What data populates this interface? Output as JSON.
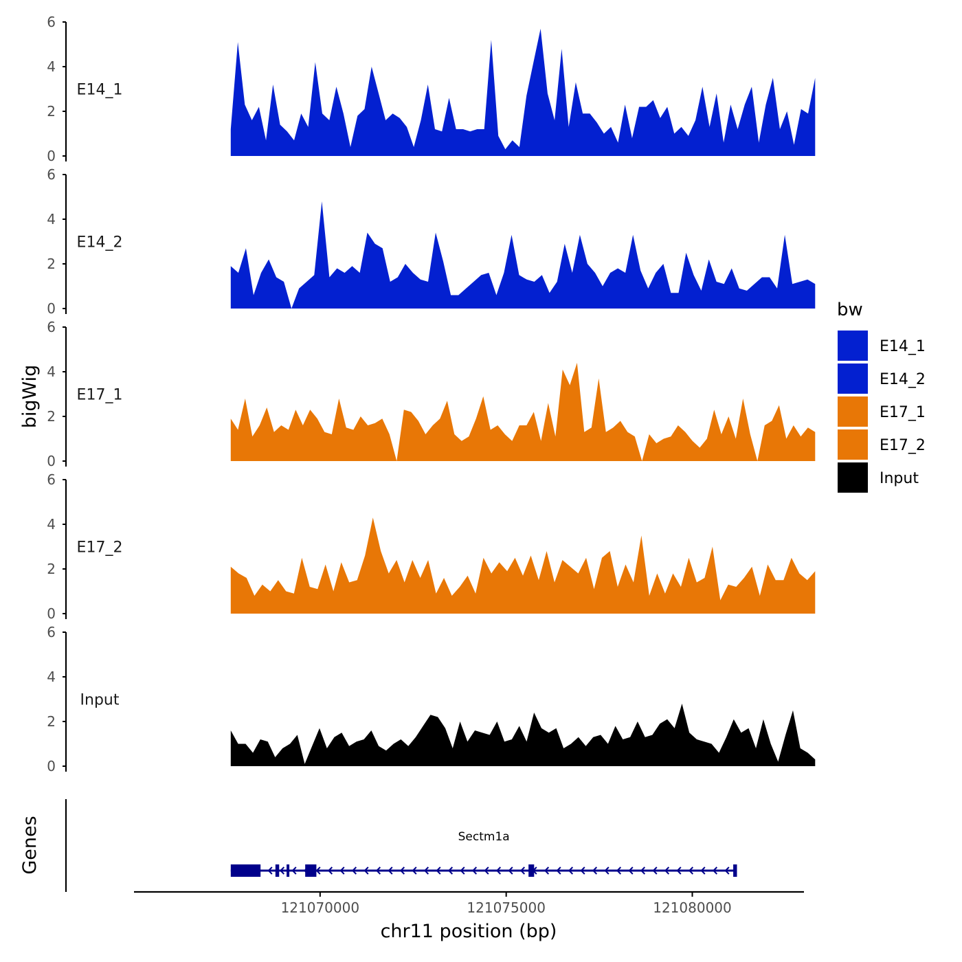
{
  "chart_data": {
    "type": "area",
    "title": "",
    "ylabel": "bigWig",
    "genes_label": "Genes",
    "xlabel": "chr11 position (bp)",
    "xlim": [
      121065000,
      121083000
    ],
    "x_ticks": [
      121070000,
      121075000,
      121080000
    ],
    "x_tick_labels": [
      "121070000",
      "121075000",
      "121080000"
    ],
    "ylim": [
      0,
      6
    ],
    "y_ticks": [
      0,
      2,
      4,
      6
    ],
    "y_tick_labels": [
      "0",
      "2",
      "4",
      "6"
    ],
    "legend": {
      "title": "bw",
      "position": "right",
      "entries": [
        {
          "label": "E14_1",
          "color": "#0320D0"
        },
        {
          "label": "E14_2",
          "color": "#0320D0"
        },
        {
          "label": "E17_1",
          "color": "#E87706"
        },
        {
          "label": "E17_2",
          "color": "#E87706"
        },
        {
          "label": "Input",
          "color": "#000000"
        }
      ]
    },
    "series": [
      {
        "name": "E14_1",
        "color": "#0320D0",
        "x_start": 121067600,
        "x_end": 121083300,
        "values": [
          1.2,
          5.1,
          2.3,
          1.6,
          2.2,
          0.7,
          3.2,
          1.4,
          1.1,
          0.7,
          1.9,
          1.3,
          4.2,
          1.9,
          1.6,
          3.1,
          1.9,
          0.4,
          1.8,
          2.1,
          4.0,
          2.8,
          1.6,
          1.9,
          1.7,
          1.3,
          0.4,
          1.6,
          3.2,
          1.2,
          1.1,
          2.6,
          1.2,
          1.2,
          1.1,
          1.2,
          1.2,
          5.2,
          0.9,
          0.3,
          0.7,
          0.4,
          2.7,
          4.2,
          5.7,
          2.8,
          1.6,
          4.8,
          1.3,
          3.3,
          1.9,
          1.9,
          1.5,
          1.0,
          1.3,
          0.6,
          2.3,
          0.8,
          2.2,
          2.2,
          2.5,
          1.7,
          2.2,
          1.0,
          1.3,
          0.9,
          1.6,
          3.1,
          1.3,
          2.8,
          0.6,
          2.3,
          1.2,
          2.3,
          3.1,
          0.6,
          2.3,
          3.5,
          1.2,
          2.0,
          0.5,
          2.1,
          1.9,
          3.5
        ]
      },
      {
        "name": "E14_2",
        "color": "#0320D0",
        "x_start": 121067600,
        "x_end": 121083300,
        "values": [
          1.9,
          1.6,
          2.7,
          0.6,
          1.6,
          2.2,
          1.4,
          1.2,
          0.0,
          0.9,
          1.2,
          1.5,
          4.8,
          1.4,
          1.8,
          1.6,
          1.9,
          1.6,
          3.4,
          2.9,
          2.7,
          1.2,
          1.4,
          2.0,
          1.6,
          1.3,
          1.2,
          3.4,
          2.1,
          0.6,
          0.6,
          0.9,
          1.2,
          1.5,
          1.6,
          0.6,
          1.6,
          3.3,
          1.5,
          1.3,
          1.2,
          1.5,
          0.7,
          1.2,
          2.9,
          1.6,
          3.3,
          2.0,
          1.6,
          1.0,
          1.6,
          1.8,
          1.6,
          3.3,
          1.7,
          0.9,
          1.6,
          2.0,
          0.7,
          0.7,
          2.5,
          1.5,
          0.8,
          2.2,
          1.2,
          1.1,
          1.8,
          0.9,
          0.8,
          1.1,
          1.4,
          1.4,
          0.9,
          3.3,
          1.1,
          1.2,
          1.3,
          1.1
        ]
      },
      {
        "name": "E17_1",
        "color": "#E87706",
        "x_start": 121067600,
        "x_end": 121083300,
        "values": [
          1.9,
          1.4,
          2.8,
          1.1,
          1.6,
          2.4,
          1.3,
          1.6,
          1.4,
          2.3,
          1.6,
          2.3,
          1.9,
          1.3,
          1.2,
          2.8,
          1.5,
          1.4,
          2.0,
          1.6,
          1.7,
          1.9,
          1.2,
          0.0,
          2.3,
          2.2,
          1.8,
          1.2,
          1.6,
          1.9,
          2.7,
          1.2,
          0.9,
          1.1,
          1.9,
          2.9,
          1.4,
          1.6,
          1.2,
          0.9,
          1.6,
          1.6,
          2.2,
          0.9,
          2.6,
          1.1,
          4.1,
          3.4,
          4.4,
          1.3,
          1.5,
          3.7,
          1.3,
          1.5,
          1.8,
          1.3,
          1.1,
          0.0,
          1.2,
          0.8,
          1.0,
          1.1,
          1.6,
          1.3,
          0.9,
          0.6,
          1.0,
          2.3,
          1.2,
          2.0,
          1.0,
          2.8,
          1.2,
          0.0,
          1.6,
          1.8,
          2.5,
          1.0,
          1.6,
          1.1,
          1.5,
          1.3
        ]
      },
      {
        "name": "E17_2",
        "color": "#E87706",
        "x_start": 121067600,
        "x_end": 121083300,
        "values": [
          2.1,
          1.8,
          1.6,
          0.8,
          1.3,
          1.0,
          1.5,
          1.0,
          0.9,
          2.5,
          1.2,
          1.1,
          2.2,
          1.0,
          2.3,
          1.4,
          1.5,
          2.6,
          4.3,
          2.8,
          1.8,
          2.4,
          1.4,
          2.4,
          1.6,
          2.4,
          0.9,
          1.6,
          0.8,
          1.2,
          1.7,
          0.9,
          2.5,
          1.8,
          2.3,
          1.9,
          2.5,
          1.7,
          2.6,
          1.5,
          2.8,
          1.4,
          2.4,
          2.1,
          1.8,
          2.5,
          1.1,
          2.5,
          2.8,
          1.2,
          2.2,
          1.4,
          3.5,
          0.8,
          1.8,
          0.9,
          1.8,
          1.2,
          2.5,
          1.4,
          1.6,
          3.0,
          0.6,
          1.3,
          1.2,
          1.6,
          2.1,
          0.8,
          2.2,
          1.5,
          1.5,
          2.5,
          1.8,
          1.5,
          1.9
        ]
      },
      {
        "name": "Input",
        "color": "#000000",
        "x_start": 121067600,
        "x_end": 121083300,
        "values": [
          1.6,
          1.0,
          1.0,
          0.6,
          1.2,
          1.1,
          0.4,
          0.8,
          1.0,
          1.4,
          0.1,
          0.9,
          1.7,
          0.8,
          1.3,
          1.5,
          0.9,
          1.1,
          1.2,
          1.6,
          0.9,
          0.7,
          1.0,
          1.2,
          0.9,
          1.3,
          1.8,
          2.3,
          2.2,
          1.7,
          0.8,
          2.0,
          1.1,
          1.6,
          1.5,
          1.4,
          2.0,
          1.1,
          1.2,
          1.8,
          1.1,
          2.4,
          1.7,
          1.5,
          1.7,
          0.8,
          1.0,
          1.3,
          0.9,
          1.3,
          1.4,
          1.0,
          1.8,
          1.2,
          1.3,
          2.0,
          1.3,
          1.4,
          1.9,
          2.1,
          1.7,
          2.8,
          1.5,
          1.2,
          1.1,
          1.0,
          0.6,
          1.3,
          2.1,
          1.5,
          1.7,
          0.8,
          2.1,
          1.0,
          0.2,
          1.4,
          2.5,
          0.8,
          0.6,
          0.3
        ]
      }
    ],
    "gene": {
      "name": "Sectm1a",
      "color": "#00008B",
      "strand": "-",
      "start": 121067600,
      "end": 121081200,
      "exons": [
        [
          121067600,
          121068000
        ],
        [
          121068000,
          121068400
        ],
        [
          121068800,
          121068900
        ],
        [
          121069100,
          121069150
        ],
        [
          121069600,
          121069900
        ],
        [
          121075600,
          121075750
        ],
        [
          121081100,
          121081200
        ]
      ]
    }
  }
}
